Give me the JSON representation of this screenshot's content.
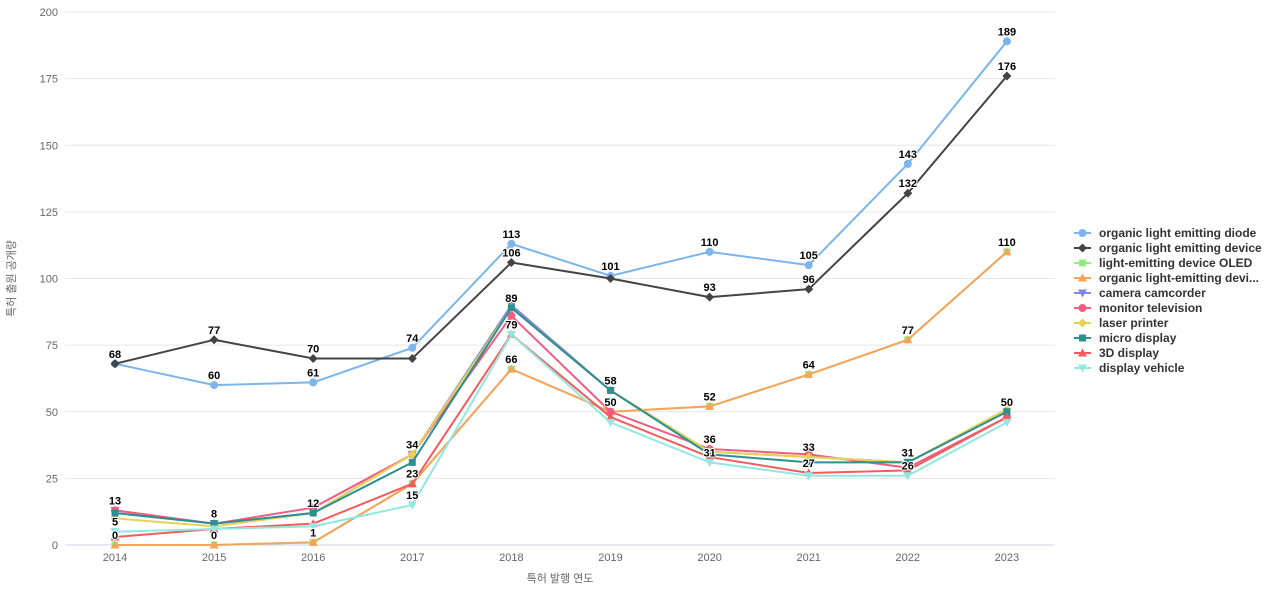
{
  "chart_data": {
    "type": "line",
    "x": [
      2014,
      2015,
      2016,
      2017,
      2018,
      2019,
      2020,
      2021,
      2022,
      2023
    ],
    "xlabel": "특허 발행 연도",
    "ylabel": "특허 출원 공개량",
    "ylim": [
      0,
      200
    ],
    "ytick_step": 25,
    "grid": true,
    "legend_position": "right",
    "background": "#ffffff",
    "grid_color": "#e6e6e6",
    "axis_line_color": "#ccd6eb",
    "tick_label_color": "#666666",
    "legend_text_color": "#333333",
    "series": [
      {
        "name": "organic light emitting diode",
        "color": "#7cb5ec",
        "marker": "circle",
        "values": [
          68,
          60,
          61,
          74,
          113,
          101,
          110,
          105,
          143,
          189
        ]
      },
      {
        "name": "organic light emitting device",
        "color": "#434348",
        "marker": "diamond",
        "values": [
          68,
          77,
          70,
          70,
          106,
          100,
          93,
          96,
          132,
          176
        ]
      },
      {
        "name": "light-emitting device OLED",
        "color": "#90ed7d",
        "marker": "square",
        "values": [
          0,
          0,
          1,
          23,
          66,
          50,
          52,
          64,
          77,
          110
        ]
      },
      {
        "name": "organic light-emitting devi...",
        "color": "#f7a35c",
        "marker": "triangle",
        "values": [
          0,
          0,
          1,
          23,
          66,
          50,
          52,
          64,
          77,
          110
        ]
      },
      {
        "name": "camera camcorder",
        "color": "#8085e9",
        "marker": "triangle-down",
        "values": [
          13,
          8,
          12,
          34,
          90,
          58,
          35,
          33,
          31,
          50
        ]
      },
      {
        "name": "monitor television",
        "color": "#f15c80",
        "marker": "circle",
        "values": [
          13,
          8,
          14,
          34,
          86,
          50,
          36,
          34,
          29,
          48
        ]
      },
      {
        "name": "laser printer",
        "color": "#e4d354",
        "marker": "diamond",
        "values": [
          10,
          7,
          12,
          34,
          89,
          58,
          35,
          33,
          31,
          51
        ]
      },
      {
        "name": "micro display",
        "color": "#2b908f",
        "marker": "square",
        "values": [
          12,
          8,
          12,
          31,
          89,
          58,
          34,
          31,
          31,
          50
        ]
      },
      {
        "name": "3D display",
        "color": "#f45b5b",
        "marker": "triangle",
        "values": [
          3,
          6,
          8,
          23,
          79,
          48,
          33,
          27,
          28,
          48
        ]
      },
      {
        "name": "display vehicle",
        "color": "#91e8e1",
        "marker": "triangle-down",
        "values": [
          5,
          6,
          7,
          15,
          79,
          46,
          31,
          26,
          26,
          46
        ]
      }
    ],
    "point_labels": [
      {
        "year": 2014,
        "value": 68
      },
      {
        "year": 2014,
        "value": 13
      },
      {
        "year": 2014,
        "value": 5
      },
      {
        "year": 2014,
        "value": 0
      },
      {
        "year": 2015,
        "value": 77
      },
      {
        "year": 2015,
        "value": 60
      },
      {
        "year": 2015,
        "value": 8
      },
      {
        "year": 2015,
        "value": 0
      },
      {
        "year": 2016,
        "value": 70
      },
      {
        "year": 2016,
        "value": 61
      },
      {
        "year": 2016,
        "value": 12
      },
      {
        "year": 2016,
        "value": 1
      },
      {
        "year": 2017,
        "value": 74
      },
      {
        "year": 2017,
        "value": 34
      },
      {
        "year": 2017,
        "value": 23
      },
      {
        "year": 2017,
        "value": 15
      },
      {
        "year": 2018,
        "value": 113
      },
      {
        "year": 2018,
        "value": 106
      },
      {
        "year": 2018,
        "value": 89
      },
      {
        "year": 2018,
        "value": 79
      },
      {
        "year": 2018,
        "value": 66
      },
      {
        "year": 2019,
        "value": 101
      },
      {
        "year": 2019,
        "value": 58
      },
      {
        "year": 2019,
        "value": 50
      },
      {
        "year": 2020,
        "value": 110
      },
      {
        "year": 2020,
        "value": 93
      },
      {
        "year": 2020,
        "value": 52
      },
      {
        "year": 2020,
        "value": 36
      },
      {
        "year": 2020,
        "value": 31
      },
      {
        "year": 2021,
        "value": 105
      },
      {
        "year": 2021,
        "value": 96
      },
      {
        "year": 2021,
        "value": 64
      },
      {
        "year": 2021,
        "value": 33
      },
      {
        "year": 2021,
        "value": 27
      },
      {
        "year": 2022,
        "value": 143
      },
      {
        "year": 2022,
        "value": 132
      },
      {
        "year": 2022,
        "value": 77
      },
      {
        "year": 2022,
        "value": 31
      },
      {
        "year": 2022,
        "value": 26
      },
      {
        "year": 2023,
        "value": 189
      },
      {
        "year": 2023,
        "value": 176
      },
      {
        "year": 2023,
        "value": 110
      },
      {
        "year": 2023,
        "value": 50
      }
    ]
  }
}
